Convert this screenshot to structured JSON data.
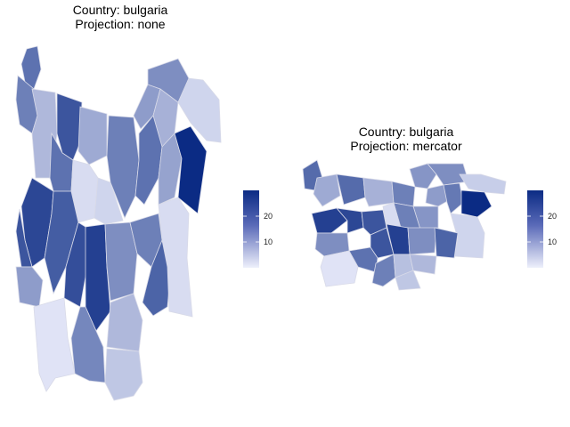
{
  "palette": {
    "low": "#e8eafa",
    "high": "#0b2b84"
  },
  "panels": [
    {
      "id": "none",
      "title_line1": "Country: bulgaria",
      "title_line2": "Projection: none",
      "legend": {
        "ticks": [
          {
            "value": 10,
            "label": "10"
          },
          {
            "value": 20,
            "label": "20"
          }
        ],
        "min": 1,
        "max": 28
      }
    },
    {
      "id": "mercator",
      "title_line1": "Country: bulgaria",
      "title_line2": "Projection: mercator",
      "legend": {
        "ticks": [
          {
            "value": 10,
            "label": "10"
          },
          {
            "value": 20,
            "label": "20"
          }
        ],
        "min": 1,
        "max": 28
      }
    }
  ]
}
